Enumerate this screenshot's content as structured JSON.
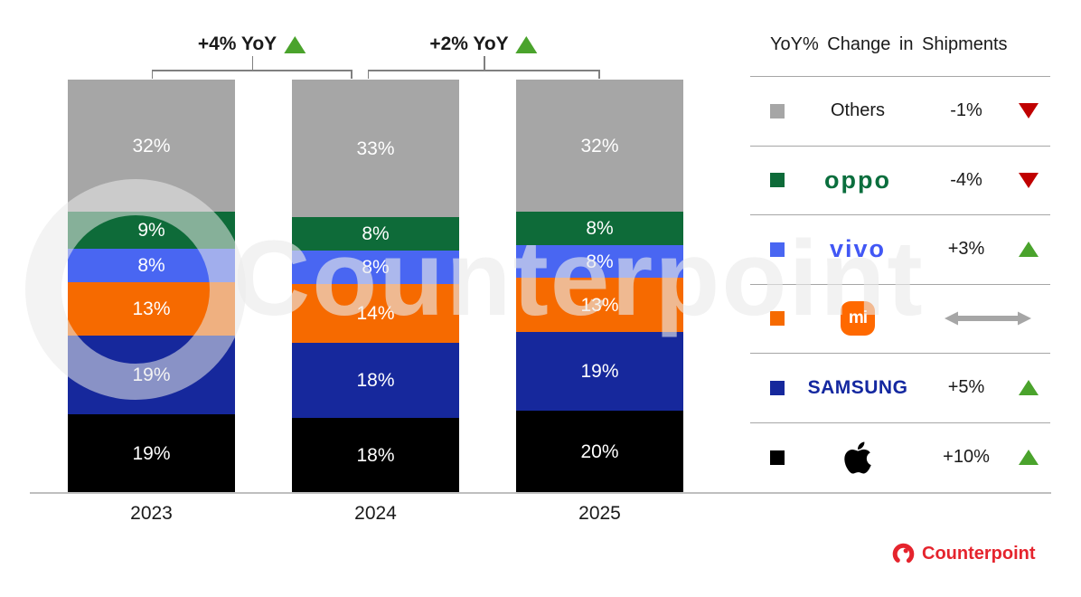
{
  "chart_data": {
    "type": "bar",
    "stacked": true,
    "title": "",
    "categories": [
      "2023",
      "2024",
      "2025"
    ],
    "series": [
      {
        "name": "Others",
        "color": "#a6a6a6",
        "values": [
          32,
          33,
          32
        ]
      },
      {
        "name": "OPPO",
        "color": "#0e6b39",
        "values": [
          9,
          8,
          8
        ]
      },
      {
        "name": "vivo",
        "color": "#4966f2",
        "values": [
          8,
          8,
          8
        ]
      },
      {
        "name": "Xiaomi",
        "color": "#f66a00",
        "values": [
          13,
          14,
          13
        ]
      },
      {
        "name": "Samsung",
        "color": "#16289c",
        "values": [
          19,
          18,
          19
        ]
      },
      {
        "name": "Apple",
        "color": "#000000",
        "values": [
          19,
          18,
          20
        ]
      }
    ],
    "value_suffix": "%",
    "ylim": [
      0,
      100
    ],
    "grid": false,
    "annotations": [
      {
        "label": "+4% YoY",
        "direction": "up",
        "from": "2023",
        "to": "2024"
      },
      {
        "label": "+2% YoY",
        "direction": "up",
        "from": "2024",
        "to": "2025"
      }
    ],
    "legend_position": "right",
    "legend_title": "YoY% Change in Shipments",
    "legend": [
      {
        "name": "Others",
        "logo_text": "Others",
        "swatch": "#a6a6a6",
        "change": "-1%",
        "direction": "down"
      },
      {
        "name": "OPPO",
        "logo_text": "oppo",
        "swatch": "#0e6b39",
        "change": "-4%",
        "direction": "down"
      },
      {
        "name": "vivo",
        "logo_text": "vivo",
        "swatch": "#4966f2",
        "change": "+3%",
        "direction": "up"
      },
      {
        "name": "Xiaomi",
        "logo_text": "mi",
        "swatch": "#f66a00",
        "change": "",
        "direction": "flat"
      },
      {
        "name": "Samsung",
        "logo_text": "SAMSUNG",
        "swatch": "#16289c",
        "change": "+5%",
        "direction": "up"
      },
      {
        "name": "Apple",
        "logo_text": "",
        "swatch": "#000000",
        "change": "+10%",
        "direction": "up"
      }
    ]
  },
  "branding": {
    "watermark": "Counterpoint",
    "logo_text": "Counterpoint"
  },
  "colors": {
    "up": "#4aa32c",
    "down": "#c00000",
    "flat": "#a6a6a6",
    "axis": "#bfbfbf",
    "bracket": "#808080",
    "logo_red": "#e5242d"
  }
}
